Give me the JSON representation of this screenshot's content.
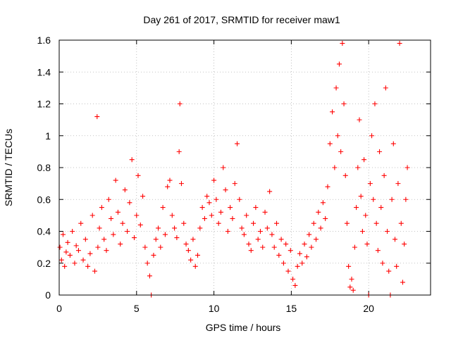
{
  "chart_data": {
    "type": "scatter",
    "title": "Day 261 of 2017, SRMTID for receiver maw1",
    "xlabel": "GPS time / hours",
    "ylabel": "SRMTID / TECUs",
    "xlim": [
      0,
      24
    ],
    "ylim": [
      0,
      1.6
    ],
    "xticks": [
      0,
      5,
      10,
      15,
      20
    ],
    "yticks": [
      0,
      0.2,
      0.4,
      0.6,
      0.8,
      1,
      1.2,
      1.4,
      1.6
    ],
    "xtick_labels": [
      "0",
      "5",
      "10",
      "15",
      "20"
    ],
    "ytick_labels": [
      "0",
      "0.2",
      "0.4",
      "0.6",
      "0.8",
      "1",
      "1.2",
      "1.4",
      "1.6"
    ],
    "grid": true,
    "marker": "+",
    "color": "#ff0000",
    "series": [
      {
        "name": "maw1",
        "x": [
          0.05,
          0.15,
          0.25,
          0.35,
          0.45,
          0.55,
          0.7,
          0.85,
          1.0,
          1.1,
          1.25,
          1.4,
          1.55,
          1.7,
          1.85,
          2.0,
          2.15,
          2.3,
          2.45,
          2.5,
          2.6,
          2.75,
          2.9,
          3.05,
          3.2,
          3.35,
          3.5,
          3.65,
          3.8,
          3.95,
          4.1,
          4.25,
          4.4,
          4.55,
          4.7,
          4.85,
          5.0,
          5.1,
          5.25,
          5.4,
          5.55,
          5.7,
          5.85,
          5.95,
          6.1,
          6.25,
          6.4,
          6.55,
          6.7,
          6.85,
          7.0,
          7.15,
          7.3,
          7.45,
          7.6,
          7.75,
          7.8,
          7.9,
          8.05,
          8.2,
          8.35,
          8.5,
          8.65,
          8.8,
          8.95,
          9.1,
          9.25,
          9.4,
          9.55,
          9.7,
          9.85,
          10.0,
          10.15,
          10.3,
          10.45,
          10.6,
          10.75,
          10.9,
          11.05,
          11.2,
          11.35,
          11.5,
          11.65,
          11.8,
          11.95,
          12.1,
          12.25,
          12.4,
          12.55,
          12.7,
          12.85,
          13.0,
          13.15,
          13.3,
          13.45,
          13.6,
          13.75,
          13.9,
          14.05,
          14.2,
          14.35,
          14.5,
          14.65,
          14.8,
          14.95,
          15.1,
          15.25,
          15.4,
          15.55,
          15.7,
          15.85,
          16.0,
          16.15,
          16.3,
          16.45,
          16.6,
          16.75,
          16.9,
          17.05,
          17.2,
          17.35,
          17.5,
          17.65,
          17.8,
          17.9,
          18.0,
          18.1,
          18.2,
          18.3,
          18.4,
          18.5,
          18.6,
          18.7,
          18.8,
          18.9,
          19.0,
          19.1,
          19.2,
          19.3,
          19.4,
          19.5,
          19.6,
          19.7,
          19.8,
          19.9,
          20.0,
          20.1,
          20.2,
          20.3,
          20.4,
          20.5,
          20.6,
          20.7,
          20.8,
          20.9,
          21.0,
          21.1,
          21.2,
          21.3,
          21.4,
          21.5,
          21.6,
          21.7,
          21.8,
          21.9,
          22.0,
          22.1,
          22.2,
          22.3,
          22.4,
          22.5
        ],
        "y": [
          0.3,
          0.22,
          0.38,
          0.18,
          0.27,
          0.33,
          0.25,
          0.4,
          0.2,
          0.31,
          0.28,
          0.45,
          0.22,
          0.35,
          0.18,
          0.26,
          0.5,
          0.15,
          1.12,
          0.3,
          0.42,
          0.55,
          0.35,
          0.28,
          0.6,
          0.48,
          0.38,
          0.72,
          0.52,
          0.32,
          0.45,
          0.66,
          0.4,
          0.58,
          0.85,
          0.36,
          0.5,
          0.75,
          0.44,
          0.62,
          0.3,
          0.2,
          0.12,
          0.0,
          0.25,
          0.35,
          0.42,
          0.3,
          0.55,
          0.38,
          0.68,
          0.72,
          0.5,
          0.42,
          0.36,
          0.9,
          1.2,
          0.7,
          0.45,
          0.32,
          0.28,
          0.22,
          0.35,
          0.18,
          0.25,
          0.42,
          0.55,
          0.48,
          0.62,
          0.58,
          0.5,
          0.72,
          0.6,
          0.45,
          0.52,
          0.8,
          0.66,
          0.4,
          0.55,
          0.48,
          0.7,
          0.95,
          0.6,
          0.42,
          0.38,
          0.5,
          0.32,
          0.28,
          0.45,
          0.55,
          0.35,
          0.4,
          0.3,
          0.52,
          0.42,
          0.65,
          0.38,
          0.3,
          0.45,
          0.25,
          0.35,
          0.2,
          0.32,
          0.15,
          0.28,
          0.1,
          0.06,
          0.18,
          0.26,
          0.2,
          0.32,
          0.24,
          0.38,
          0.3,
          0.45,
          0.35,
          0.52,
          0.42,
          0.58,
          0.48,
          0.68,
          0.95,
          1.15,
          0.8,
          1.3,
          1.0,
          1.45,
          0.9,
          1.58,
          1.2,
          0.75,
          0.45,
          0.18,
          0.05,
          0.1,
          0.03,
          0.3,
          0.55,
          0.8,
          1.1,
          0.62,
          0.4,
          0.85,
          0.5,
          0.32,
          0.0,
          0.7,
          1.0,
          0.6,
          1.2,
          0.45,
          0.28,
          0.9,
          0.55,
          0.2,
          0.75,
          1.3,
          0.4,
          0.15,
          0.0,
          0.6,
          0.95,
          0.35,
          0.18,
          0.7,
          1.58,
          0.45,
          0.08,
          0.32,
          0.6,
          0.8
        ]
      }
    ]
  }
}
